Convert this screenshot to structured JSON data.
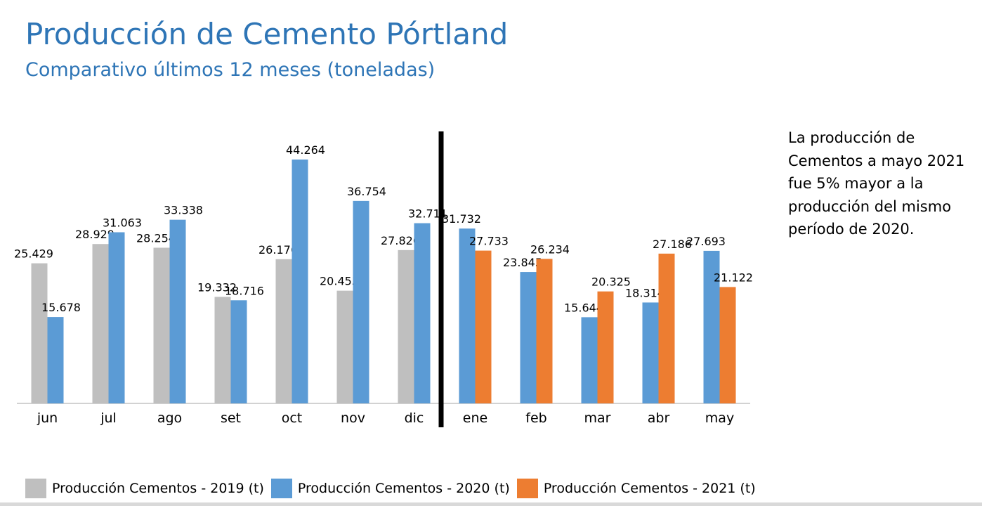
{
  "header": {
    "title": "Producción de Cemento Pórtland",
    "subtitle": "Comparativo últimos 12 meses (toneladas)"
  },
  "note": "La producción de Cementos a mayo 2021 fue 5% mayor a la producción del mismo período de 2020.",
  "colors": {
    "s2019": "#bfbfbf",
    "s2020": "#5b9bd5",
    "s2021": "#ed7d31",
    "divider": "#000000",
    "title": "#2e75b6"
  },
  "chart_data": {
    "type": "bar",
    "categories": [
      "jun",
      "jul",
      "ago",
      "set",
      "oct",
      "nov",
      "dic",
      "ene",
      "feb",
      "mar",
      "abr",
      "may"
    ],
    "series": [
      {
        "name": "Producción Cementos - 2019 (t)",
        "color": "#bfbfbf",
        "values": [
          25429,
          28929,
          28254,
          19332,
          26176,
          20455,
          27826,
          null,
          null,
          null,
          null,
          null
        ],
        "labels": [
          "25.429",
          "28.929",
          "28.254",
          "19.332",
          "26.176",
          "20.455",
          "27.826",
          null,
          null,
          null,
          null,
          null
        ]
      },
      {
        "name": "Producción Cementos - 2020 (t)",
        "color": "#5b9bd5",
        "values": [
          15678,
          31063,
          33338,
          18716,
          44264,
          36754,
          32711,
          31732,
          23845,
          15644,
          18314,
          27693
        ],
        "labels": [
          "15.678",
          "31.063",
          "33.338",
          "18.716",
          "44.264",
          "36.754",
          "32.711",
          "31.732",
          "23.845",
          "15.644",
          "18.314",
          "27.693"
        ]
      },
      {
        "name": "Producción Cementos - 2021 (t)",
        "color": "#ed7d31",
        "values": [
          null,
          null,
          null,
          null,
          null,
          null,
          null,
          27733,
          26234,
          20325,
          27186,
          21122
        ],
        "labels": [
          null,
          null,
          null,
          null,
          null,
          null,
          null,
          "27.733",
          "26.234",
          "20.325",
          "27.186",
          "21.122"
        ]
      }
    ],
    "ylim": [
      0,
      44264
    ],
    "grid": false,
    "legend_position": "bottom",
    "divider_after_category": "dic"
  }
}
